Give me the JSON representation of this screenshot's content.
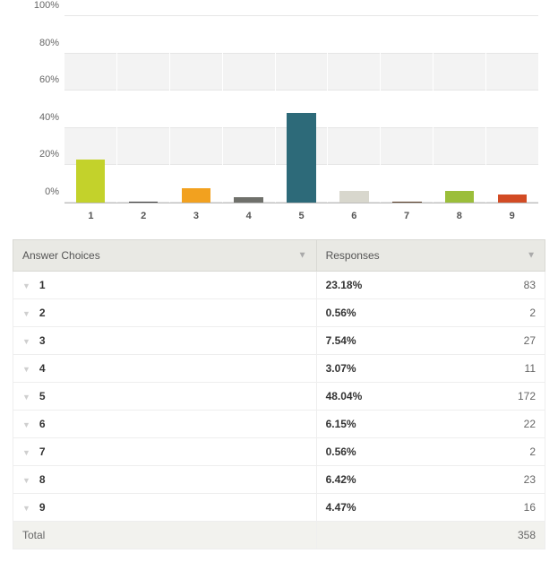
{
  "chart": {
    "type": "bar",
    "y_axis": {
      "min": 0,
      "max": 100,
      "step": 20,
      "suffix": "%",
      "band_color": "#f3f3f3",
      "grid_color": "#e6e6e6"
    },
    "bars": [
      {
        "label": "1",
        "value": 23.18,
        "color": "#c3d22b"
      },
      {
        "label": "2",
        "value": 0.56,
        "color": "#3f3f3f"
      },
      {
        "label": "3",
        "value": 7.54,
        "color": "#f2a11f"
      },
      {
        "label": "4",
        "value": 3.07,
        "color": "#6f706b"
      },
      {
        "label": "5",
        "value": 48.04,
        "color": "#2d6a79"
      },
      {
        "label": "6",
        "value": 6.15,
        "color": "#d8d7cd"
      },
      {
        "label": "7",
        "value": 0.56,
        "color": "#5a3e28"
      },
      {
        "label": "8",
        "value": 6.42,
        "color": "#9bbe3a"
      },
      {
        "label": "9",
        "value": 4.47,
        "color": "#d24b24"
      }
    ]
  },
  "table": {
    "header_answer": "Answer Choices",
    "header_responses": "Responses",
    "rows": [
      {
        "label": "1",
        "pct": "23.18%",
        "count": "83"
      },
      {
        "label": "2",
        "pct": "0.56%",
        "count": "2"
      },
      {
        "label": "3",
        "pct": "7.54%",
        "count": "27"
      },
      {
        "label": "4",
        "pct": "3.07%",
        "count": "11"
      },
      {
        "label": "5",
        "pct": "48.04%",
        "count": "172"
      },
      {
        "label": "6",
        "pct": "6.15%",
        "count": "22"
      },
      {
        "label": "7",
        "pct": "0.56%",
        "count": "2"
      },
      {
        "label": "8",
        "pct": "6.42%",
        "count": "23"
      },
      {
        "label": "9",
        "pct": "4.47%",
        "count": "16"
      }
    ],
    "total_label": "Total",
    "total_count": "358"
  }
}
